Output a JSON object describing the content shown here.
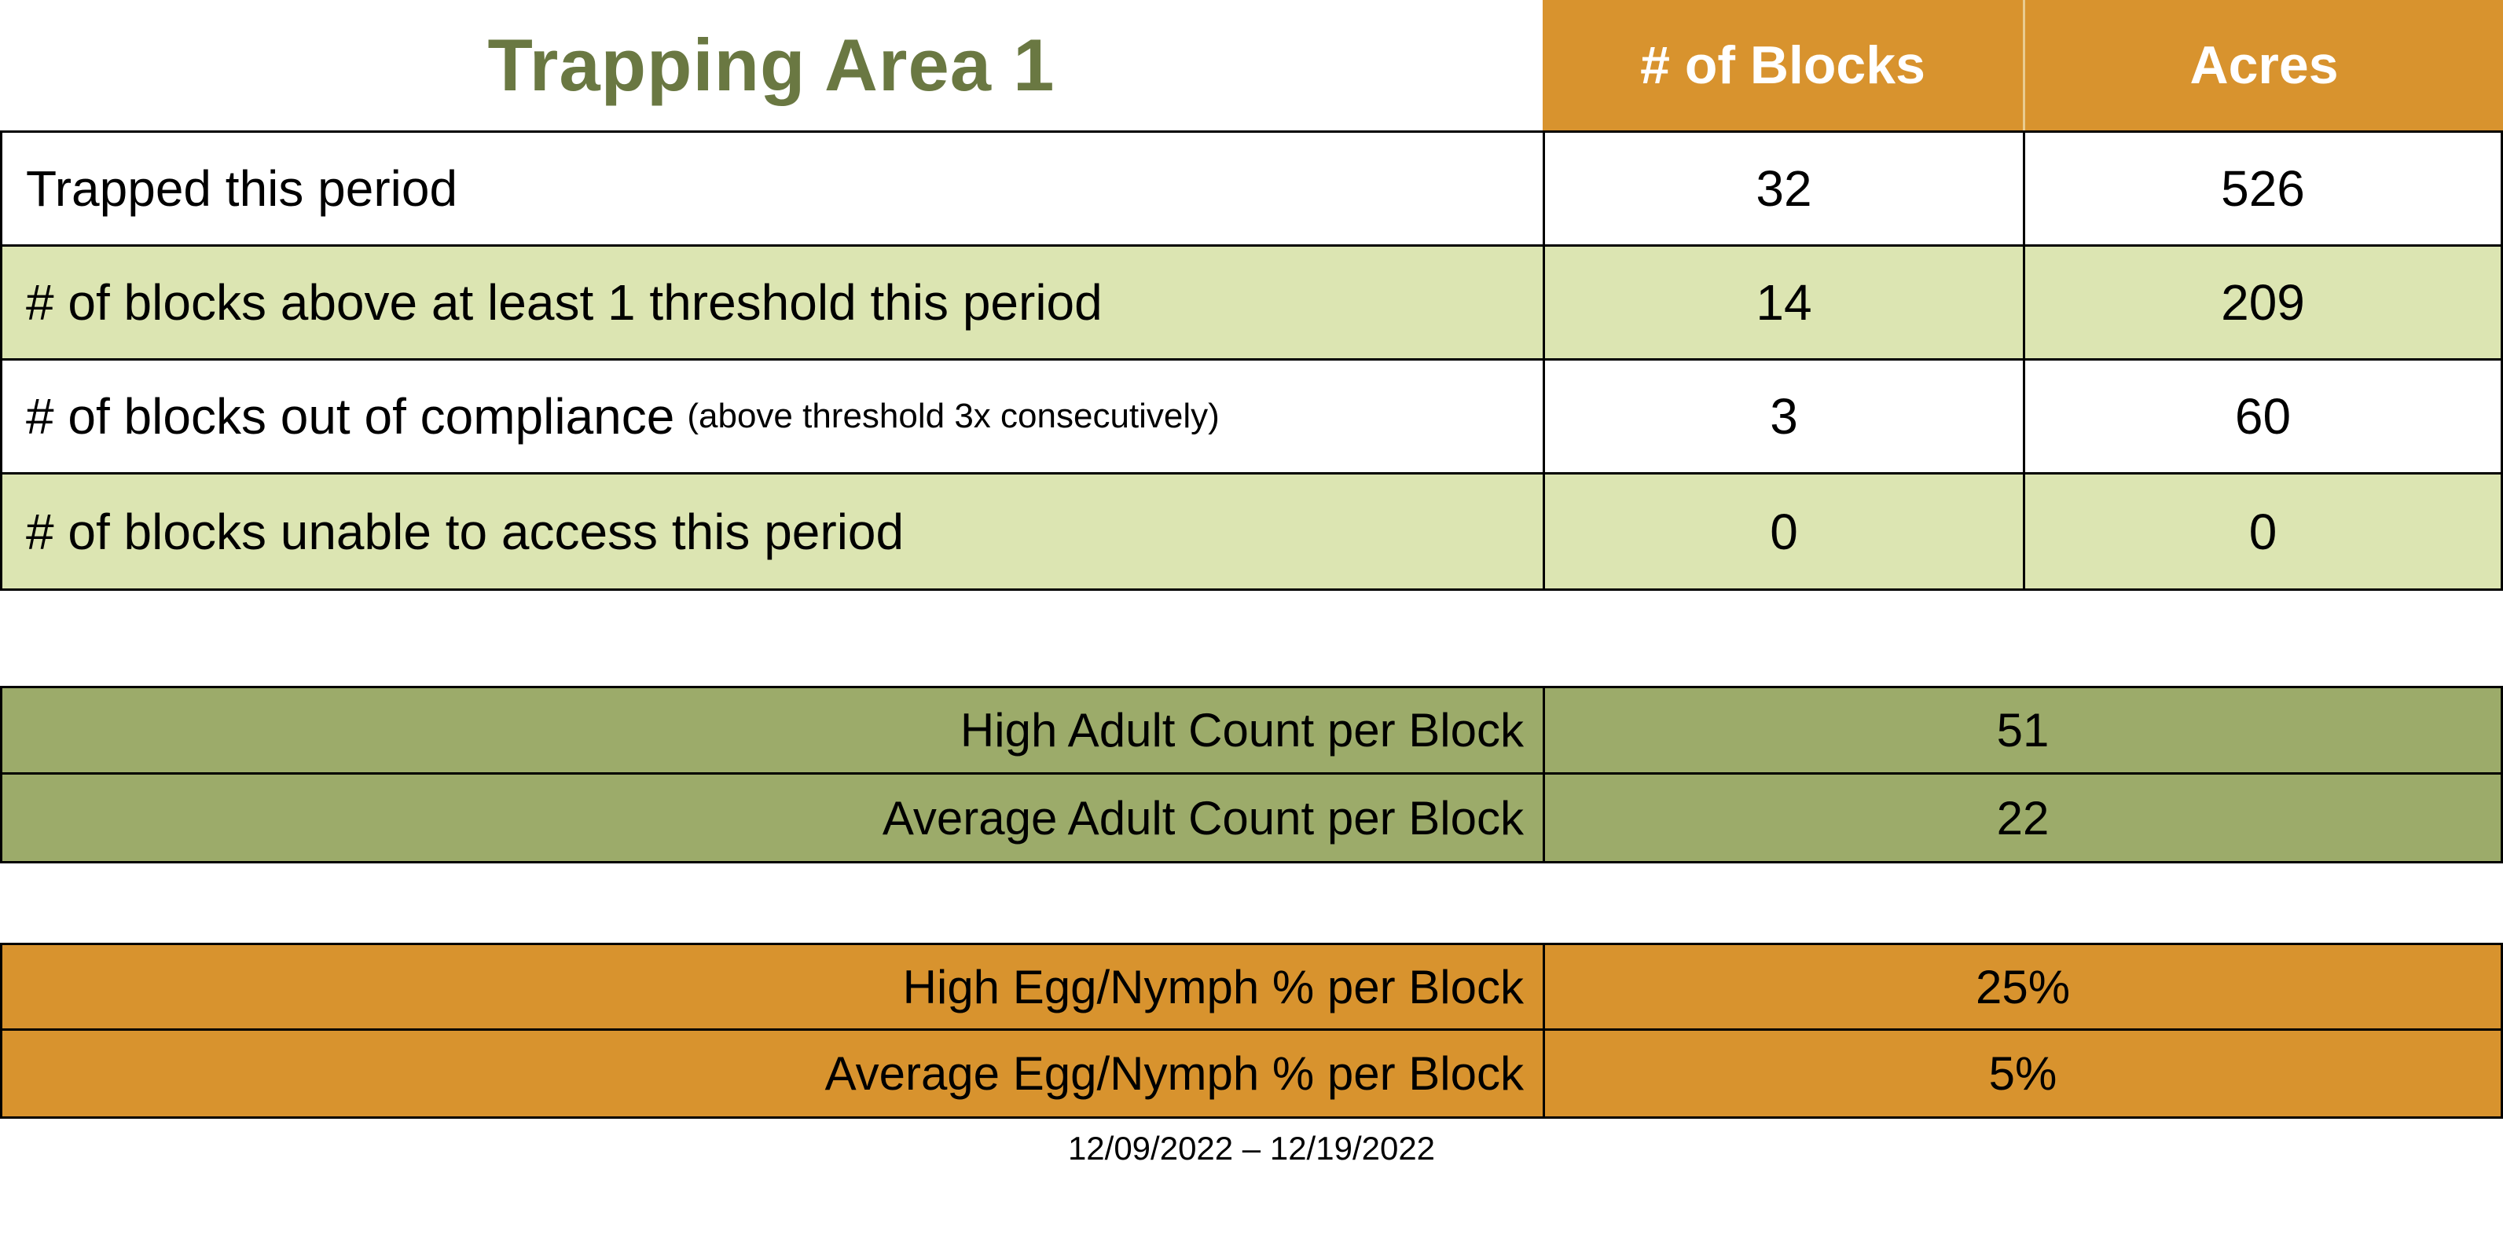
{
  "title": "Trapping Area 1",
  "table1": {
    "col_headers": [
      "# of Blocks",
      "Acres"
    ],
    "rows": [
      {
        "label": "Trapped this period",
        "note": "",
        "blocks": "32",
        "acres": "526"
      },
      {
        "label": "# of blocks above at least 1 threshold this period",
        "note": "",
        "blocks": "14",
        "acres": "209"
      },
      {
        "label": "# of blocks out of compliance",
        "note": "(above threshold 3x consecutively)",
        "blocks": "3",
        "acres": "60"
      },
      {
        "label": "# of blocks unable to access this period",
        "note": "",
        "blocks": "0",
        "acres": "0"
      }
    ]
  },
  "adult_section": {
    "rows": [
      {
        "label": "High Adult Count per Block",
        "value": "51"
      },
      {
        "label": "Average Adult Count per Block",
        "value": "22"
      }
    ]
  },
  "egg_section": {
    "rows": [
      {
        "label": "High Egg/Nymph % per Block",
        "value": "25%"
      },
      {
        "label": "Average Egg/Nymph % per Block",
        "value": "5%"
      }
    ]
  },
  "date_range": "12/09/2022 – 12/19/2022",
  "colors": {
    "header_orange": "#D8932E",
    "light_green_row": "#DCE5B2",
    "olive_section": "#9CAB6A",
    "title_green": "#6A7842",
    "border_black": "#000000",
    "header_text_white": "#ffffff"
  }
}
